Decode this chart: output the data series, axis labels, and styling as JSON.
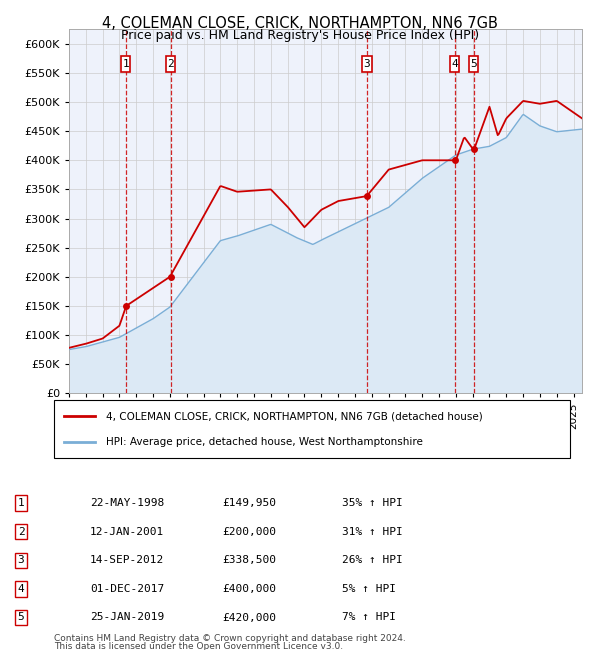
{
  "title": "4, COLEMAN CLOSE, CRICK, NORTHAMPTON, NN6 7GB",
  "subtitle": "Price paid vs. HM Land Registry's House Price Index (HPI)",
  "ylim": [
    0,
    625000
  ],
  "yticks": [
    0,
    50000,
    100000,
    150000,
    200000,
    250000,
    300000,
    350000,
    400000,
    450000,
    500000,
    550000,
    600000
  ],
  "xlim_start": 1995.0,
  "xlim_end": 2025.5,
  "transactions": [
    {
      "num": 1,
      "date": "22-MAY-1998",
      "price": 149950,
      "pct": "35%",
      "year": 1998.38
    },
    {
      "num": 2,
      "date": "12-JAN-2001",
      "price": 200000,
      "pct": "31%",
      "year": 2001.04
    },
    {
      "num": 3,
      "date": "14-SEP-2012",
      "price": 338500,
      "pct": "26%",
      "year": 2012.71
    },
    {
      "num": 4,
      "date": "01-DEC-2017",
      "price": 400000,
      "pct": "5%",
      "year": 2017.92
    },
    {
      "num": 5,
      "date": "25-JAN-2019",
      "price": 420000,
      "pct": "7%",
      "year": 2019.07
    }
  ],
  "red_line_color": "#cc0000",
  "blue_line_color": "#7aaed6",
  "blue_fill_color": "#dce9f5",
  "grid_color": "#cccccc",
  "dashed_color": "#cc0000",
  "marker_color": "#cc0000",
  "box_color": "#cc0000",
  "legend_line1": "4, COLEMAN CLOSE, CRICK, NORTHAMPTON, NN6 7GB (detached house)",
  "legend_line2": "HPI: Average price, detached house, West Northamptonshire",
  "footer1": "Contains HM Land Registry data © Crown copyright and database right 2024.",
  "footer2": "This data is licensed under the Open Government Licence v3.0.",
  "plot_bg": "#eef2fb"
}
